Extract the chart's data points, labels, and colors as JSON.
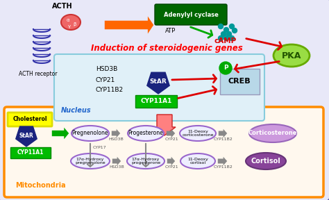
{
  "bg_color": "#ffffff",
  "outer_cell_color": "#e8e8f8",
  "outer_border_color": "#5555aa",
  "mito_fill": "#fff8ee",
  "mito_border": "#ff8c00",
  "nucleus_fill": "#e0f0f8",
  "nucleus_border": "#88ccdd",
  "adenylyl_fill": "#006600",
  "pka_fill": "#99dd44",
  "pka_border": "#66aa00",
  "star_fill": "#1a237e",
  "cyp11a1_fill": "#00bb00",
  "creb_fill": "#b8d8e8",
  "p_fill": "#00aa00",
  "chol_fill": "#ffff00",
  "chol_border": "#dddd00",
  "ellipse_fill": "#eeeeff",
  "ellipse_border": "#9966cc",
  "cortico_fill": "#cc99dd",
  "cortico_border": "#9966bb",
  "cortisol_fill": "#884499",
  "cortisol_border": "#663377",
  "orange_arrow": "#ff6600",
  "red_arrow": "#dd0000",
  "green_arrow": "#00aa00",
  "gray_arrow": "#888888",
  "title_text": "Induction of steroidogenic genes",
  "nucleus_label": "Nucleus",
  "mito_label": "Mitochondria",
  "genes_list": [
    "HSD3B",
    "CYP21",
    "CYP11B2"
  ],
  "pathway_top": [
    "Pregnenolone",
    "Progesterone",
    "11-Deoxy\ncorticosterone"
  ],
  "pathway_bot": [
    "17α-Hydroxy\npregnenolone",
    "17α-Hydroxy\nprogesterone",
    "11-Deoxy\ncortisol"
  ],
  "enzyme_top": [
    "HSD3B",
    "CYP21",
    "CYP11B2"
  ],
  "enzyme_bot": [
    "HSD3B",
    "CYP21",
    "CYP11B2"
  ]
}
